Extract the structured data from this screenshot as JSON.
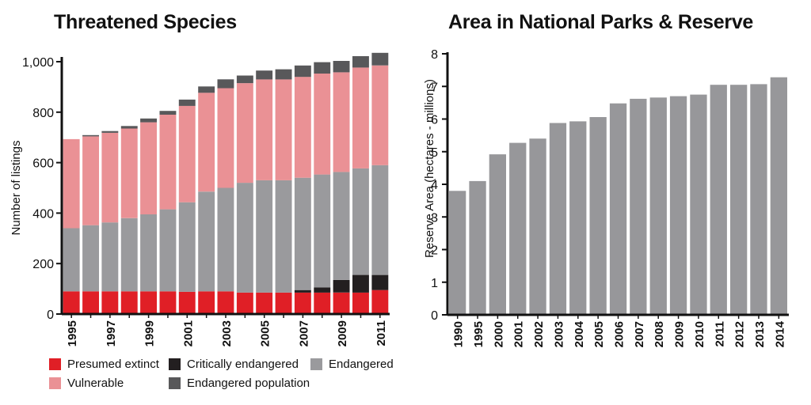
{
  "left_title": "Threatened Species",
  "right_title": "Area in National Parks & Reserve",
  "colors": {
    "presumed_extinct": "#e01f26",
    "critically_endangered": "#231f20",
    "endangered": "#9a9a9d",
    "vulnerable": "#ea9195",
    "endangered_population": "#58585a"
  },
  "legend": {
    "presumed_extinct": "Presumed extinct",
    "critically_endangered": "Critically endangered",
    "endangered": "Endangered",
    "vulnerable": "Vulnerable",
    "endangered_population": "Endangered population"
  },
  "chart_data": [
    {
      "type": "bar",
      "stacked": true,
      "title": "Threatened Species",
      "ylabel": "Number of listings",
      "xlabel": "",
      "ylim": [
        0,
        1000
      ],
      "yticks": [
        "0",
        "200",
        "400",
        "600",
        "800",
        "1,000"
      ],
      "xticks": [
        "1995",
        "1997",
        "1999",
        "2001",
        "2003",
        "2005",
        "2007",
        "2009",
        "2011"
      ],
      "categories": [
        "1995",
        "1996",
        "1997",
        "1998",
        "1999",
        "2000",
        "2001",
        "2002",
        "2003",
        "2004",
        "2005",
        "2006",
        "2007",
        "2008",
        "2009",
        "2010",
        "2011"
      ],
      "series": [
        {
          "name": "Presumed extinct",
          "values": [
            90,
            90,
            90,
            90,
            90,
            90,
            88,
            90,
            90,
            85,
            85,
            85,
            85,
            85,
            85,
            85,
            95
          ]
        },
        {
          "name": "Critically endangered",
          "values": [
            0,
            0,
            0,
            0,
            0,
            0,
            0,
            0,
            0,
            0,
            0,
            0,
            10,
            20,
            50,
            70,
            60
          ]
        },
        {
          "name": "Endangered",
          "values": [
            250,
            262,
            273,
            290,
            305,
            325,
            355,
            395,
            410,
            435,
            445,
            445,
            445,
            448,
            428,
            422,
            435
          ]
        },
        {
          "name": "Vulnerable",
          "values": [
            353,
            352,
            355,
            355,
            365,
            375,
            382,
            392,
            395,
            395,
            400,
            400,
            400,
            400,
            395,
            400,
            395
          ]
        },
        {
          "name": "Endangered population",
          "values": [
            0,
            5,
            7,
            10,
            15,
            15,
            25,
            25,
            35,
            30,
            35,
            40,
            45,
            45,
            45,
            45,
            50
          ]
        }
      ],
      "legend_position": "bottom"
    },
    {
      "type": "bar",
      "title": "Area in National Parks & Reserve",
      "ylabel": "Reserve Area (hectares - millions)",
      "xlabel": "",
      "ylim": [
        0,
        8
      ],
      "yticks": [
        "0",
        "1",
        "2",
        "3",
        "4",
        "5",
        "6",
        "7",
        "8"
      ],
      "categories": [
        "1990",
        "1995",
        "2000",
        "2001",
        "2002",
        "2003",
        "2004",
        "2005",
        "2006",
        "2007",
        "2008",
        "2009",
        "2010",
        "2011",
        "2012",
        "2013",
        "2014"
      ],
      "values": [
        3.8,
        4.1,
        4.92,
        5.27,
        5.4,
        5.88,
        5.93,
        6.06,
        6.48,
        6.62,
        6.66,
        6.7,
        6.75,
        7.05,
        7.05,
        7.07,
        7.28
      ]
    }
  ]
}
